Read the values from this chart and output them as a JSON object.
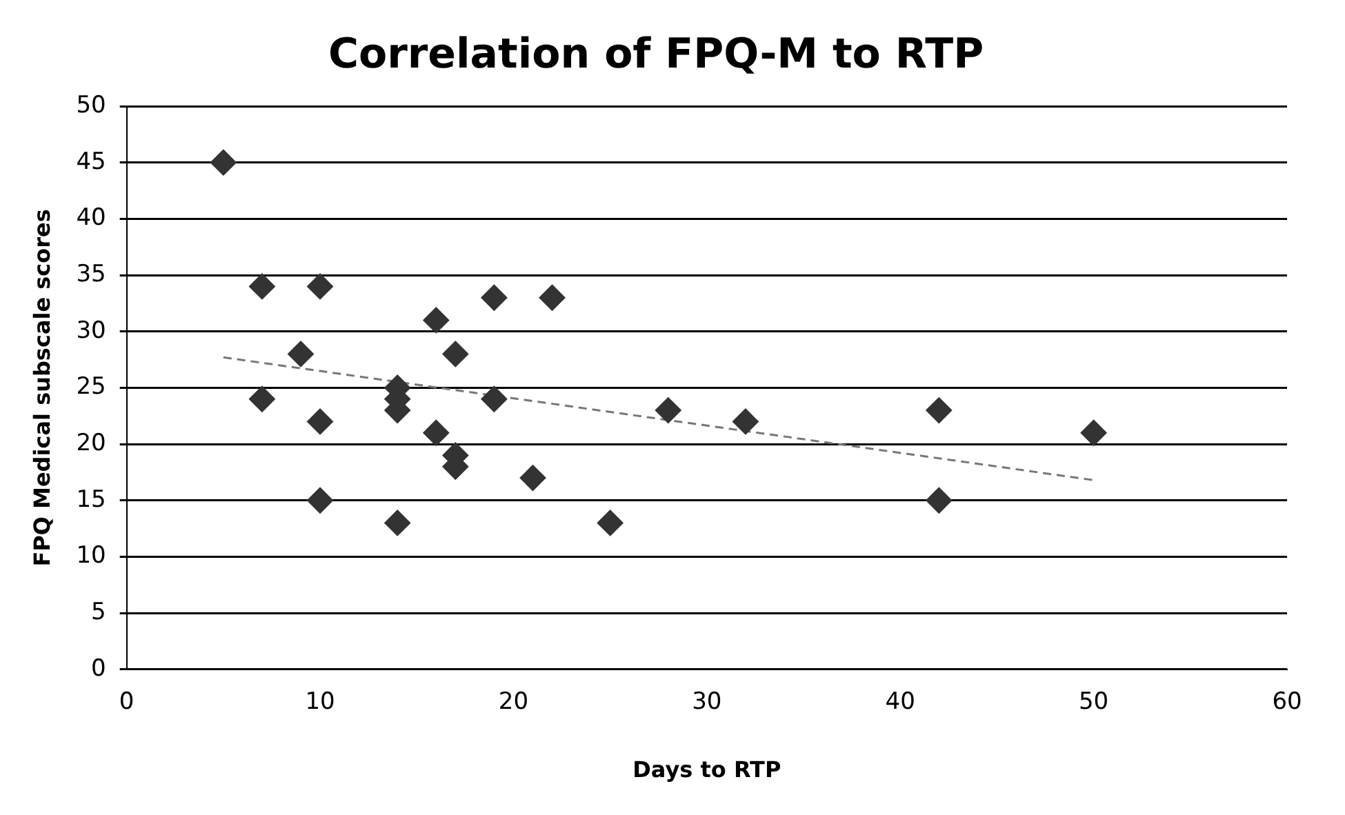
{
  "chart_data": {
    "type": "scatter",
    "title": "Correlation of FPQ-M to RTP",
    "xlabel": "Days to RTP",
    "ylabel": "FPQ Medical subscale scores",
    "series": [
      {
        "color": "#333333",
        "marker": "diamond",
        "x": [
          5,
          7,
          10,
          9,
          7,
          10,
          10,
          14,
          14,
          14,
          14,
          16,
          17,
          16,
          17,
          17,
          19,
          22,
          19,
          21,
          25,
          28,
          32,
          42,
          42,
          50
        ],
        "values": [
          45,
          34,
          34,
          28,
          24,
          22,
          15,
          25,
          24,
          23,
          13,
          31,
          28,
          21,
          19,
          18,
          33,
          33,
          24,
          17,
          13,
          23,
          22,
          23,
          15,
          21
        ]
      },
      {
        "type": "line",
        "color": "#777777",
        "marker": "none",
        "line_style": "dashed",
        "x": [
          5,
          50
        ],
        "values": [
          27.7,
          16.8
        ]
      }
    ],
    "xlim": [
      0,
      60
    ],
    "xticks": [
      0,
      10,
      20,
      30,
      40,
      50,
      60
    ],
    "ylim": [
      0,
      50
    ],
    "yticks": [
      0,
      5,
      10,
      15,
      20,
      25,
      30,
      35,
      40,
      45,
      50
    ],
    "grid": "y",
    "legend": false
  }
}
